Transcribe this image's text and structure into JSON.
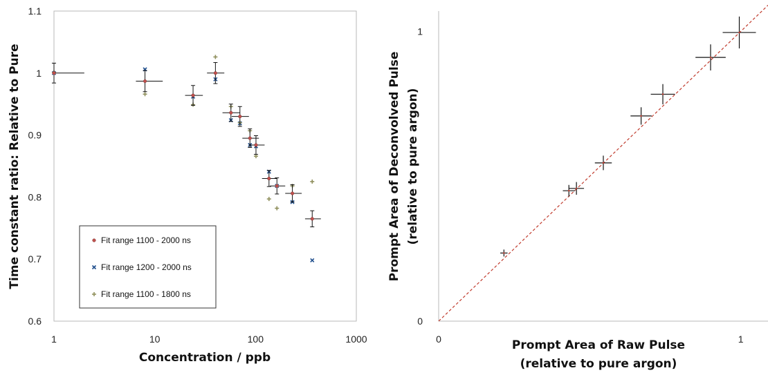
{
  "chart_data": [
    {
      "type": "scatter",
      "title": "",
      "xlabel": "Concentration / ppb",
      "ylabel": "Time constant ratio: Relative to Pure",
      "xscale": "log",
      "xlim": [
        1,
        1000
      ],
      "ylim": [
        0.6,
        1.1
      ],
      "xticks": [
        "1",
        "10",
        "100",
        "1000"
      ],
      "yticks": [
        "0.6",
        "0.7",
        "0.8",
        "0.9",
        "1",
        "1.1"
      ],
      "grid": false,
      "legend_position": "bottom-left",
      "series": [
        {
          "name": "Fit range 1100 - 2000 ns",
          "marker": "dot",
          "color": "#c0504d",
          "points": [
            {
              "x": 1,
              "y": 1.0,
              "xerr": [
                0,
                1
              ],
              "yerr": 0.016
            },
            {
              "x": 8,
              "y": 0.987,
              "xerr": [
                1.5,
                4
              ],
              "yerr": 0.017
            },
            {
              "x": 24,
              "y": 0.964,
              "xerr": [
                4,
                6
              ],
              "yerr": 0.016
            },
            {
              "x": 40,
              "y": 1.0,
              "xerr": [
                7,
                9
              ],
              "yerr": 0.017
            },
            {
              "x": 57,
              "y": 0.936,
              "xerr": [
                10,
                13
              ],
              "yerr": 0.014
            },
            {
              "x": 70,
              "y": 0.93,
              "xerr": [
                12,
                16
              ],
              "yerr": 0.016
            },
            {
              "x": 88,
              "y": 0.895,
              "xerr": [
                14,
                20
              ],
              "yerr": 0.015
            },
            {
              "x": 101,
              "y": 0.884,
              "xerr": [
                15,
                22
              ],
              "yerr": 0.015
            },
            {
              "x": 136,
              "y": 0.83,
              "xerr": [
                20,
                28
              ],
              "yerr": 0.013
            },
            {
              "x": 163,
              "y": 0.818,
              "xerr": [
                24,
                34
              ],
              "yerr": 0.013
            },
            {
              "x": 232,
              "y": 0.806,
              "xerr": [
                35,
                55
              ],
              "yerr": 0.014
            },
            {
              "x": 365,
              "y": 0.765,
              "xerr": [
                55,
                80
              ],
              "yerr": 0.013
            }
          ]
        },
        {
          "name": "Fit range 1200 - 2000 ns",
          "marker": "x",
          "color": "#1f4e8c",
          "points": [
            {
              "x": 1,
              "y": 1.0
            },
            {
              "x": 8,
              "y": 1.006
            },
            {
              "x": 24,
              "y": 0.962
            },
            {
              "x": 40,
              "y": 0.99
            },
            {
              "x": 57,
              "y": 0.924
            },
            {
              "x": 70,
              "y": 0.919
            },
            {
              "x": 88,
              "y": 0.884
            },
            {
              "x": 101,
              "y": 0.882
            },
            {
              "x": 136,
              "y": 0.841
            },
            {
              "x": 163,
              "y": 0.818
            },
            {
              "x": 232,
              "y": 0.792
            },
            {
              "x": 365,
              "y": 0.698
            }
          ]
        },
        {
          "name": "Fit range 1100 - 1800 ns",
          "marker": "plus",
          "color": "#8f8f5c",
          "points": [
            {
              "x": 1,
              "y": 1.001
            },
            {
              "x": 8,
              "y": 0.966
            },
            {
              "x": 24,
              "y": 0.949
            },
            {
              "x": 40,
              "y": 1.026
            },
            {
              "x": 57,
              "y": 0.946
            },
            {
              "x": 70,
              "y": 0.92
            },
            {
              "x": 88,
              "y": 0.907
            },
            {
              "x": 101,
              "y": 0.866
            },
            {
              "x": 136,
              "y": 0.797
            },
            {
              "x": 163,
              "y": 0.782
            },
            {
              "x": 232,
              "y": 0.818
            },
            {
              "x": 365,
              "y": 0.825
            }
          ]
        }
      ]
    },
    {
      "type": "scatter",
      "title": "",
      "xlabel": [
        "Prompt Area of Raw Pulse",
        "(relative to pure argon)"
      ],
      "ylabel": [
        "Prompt Area of Deconvolved Pulse",
        "(relative to pure argon)"
      ],
      "xlim": [
        0,
        1.09
      ],
      "ylim": [
        0,
        1.07
      ],
      "xticks": [
        "0",
        "1"
      ],
      "yticks": [
        "0",
        "1"
      ],
      "grid": false,
      "reference_line": {
        "style": "dashed",
        "color": "#c0392b",
        "from": [
          0,
          0
        ],
        "to": [
          1.09,
          1.09
        ]
      },
      "points": [
        {
          "x": 0.216,
          "y": 0.235,
          "xerr": 0.012,
          "yerr": 0.012
        },
        {
          "x": 0.431,
          "y": 0.45,
          "xerr": 0.02,
          "yerr": 0.02
        },
        {
          "x": 0.456,
          "y": 0.458,
          "xerr": 0.025,
          "yerr": 0.022
        },
        {
          "x": 0.545,
          "y": 0.546,
          "xerr": 0.028,
          "yerr": 0.025
        },
        {
          "x": 0.67,
          "y": 0.708,
          "xerr": 0.035,
          "yerr": 0.03
        },
        {
          "x": 0.742,
          "y": 0.783,
          "xerr": 0.04,
          "yerr": 0.035
        },
        {
          "x": 0.9,
          "y": 0.91,
          "xerr": 0.05,
          "yerr": 0.045
        },
        {
          "x": 0.995,
          "y": 0.996,
          "xerr": 0.055,
          "yerr": 0.055
        }
      ]
    }
  ]
}
